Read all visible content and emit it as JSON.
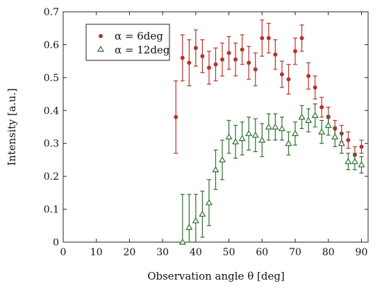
{
  "chart_data": {
    "type": "scatter",
    "title": "",
    "xlabel": "Observation angle θ [deg]",
    "ylabel": "Intensity [a.u.]",
    "xlim": [
      0,
      92
    ],
    "ylim": [
      0,
      0.7
    ],
    "xticks": [
      "0",
      "10",
      "20",
      "30",
      "40",
      "50",
      "60",
      "70",
      "80",
      "90"
    ],
    "yticks": [
      "0",
      "0.1",
      "0.2",
      "0.3",
      "0.4",
      "0.5",
      "0.6",
      "0.7"
    ],
    "legend": "top-left",
    "grid": false,
    "series": [
      {
        "name": "α = 6deg",
        "marker": "circle",
        "color": "#b5322a",
        "x": [
          34,
          36,
          38,
          40,
          42,
          44,
          46,
          48,
          50,
          52,
          54,
          56,
          58,
          60,
          62,
          64,
          66,
          68,
          70,
          72,
          74,
          76,
          78,
          80,
          82,
          84,
          86,
          88,
          90
        ],
        "y": [
          0.38,
          0.56,
          0.545,
          0.59,
          0.565,
          0.53,
          0.54,
          0.555,
          0.575,
          0.555,
          0.585,
          0.545,
          0.525,
          0.62,
          0.62,
          0.57,
          0.51,
          0.495,
          0.58,
          0.62,
          0.505,
          0.47,
          0.41,
          0.38,
          0.345,
          0.33,
          0.31,
          0.265,
          0.29
        ],
        "err": [
          0.11,
          0.07,
          0.07,
          0.055,
          0.05,
          0.05,
          0.05,
          0.05,
          0.05,
          0.05,
          0.045,
          0.05,
          0.05,
          0.055,
          0.045,
          0.045,
          0.04,
          0.045,
          0.04,
          0.04,
          0.04,
          0.035,
          0.03,
          0.03,
          0.025,
          0.025,
          0.025,
          0.025,
          0.02
        ]
      },
      {
        "name": "α = 12deg",
        "marker": "triangle",
        "color": "#2e6e2e",
        "x": [
          36,
          38,
          40,
          42,
          44,
          46,
          48,
          50,
          52,
          54,
          56,
          58,
          60,
          62,
          64,
          66,
          68,
          70,
          72,
          74,
          76,
          78,
          80,
          82,
          84,
          86,
          88,
          90
        ],
        "y": [
          0.0,
          0.045,
          0.065,
          0.085,
          0.12,
          0.22,
          0.25,
          0.32,
          0.305,
          0.315,
          0.33,
          0.325,
          0.31,
          0.35,
          0.35,
          0.345,
          0.3,
          0.33,
          0.38,
          0.37,
          0.385,
          0.335,
          0.355,
          0.32,
          0.3,
          0.245,
          0.245,
          0.235
        ],
        "err": [
          0.145,
          0.1,
          0.08,
          0.07,
          0.07,
          0.06,
          0.06,
          0.05,
          0.05,
          0.05,
          0.05,
          0.05,
          0.05,
          0.04,
          0.04,
          0.035,
          0.035,
          0.035,
          0.035,
          0.035,
          0.035,
          0.035,
          0.03,
          0.03,
          0.03,
          0.025,
          0.025,
          0.025
        ]
      }
    ]
  }
}
